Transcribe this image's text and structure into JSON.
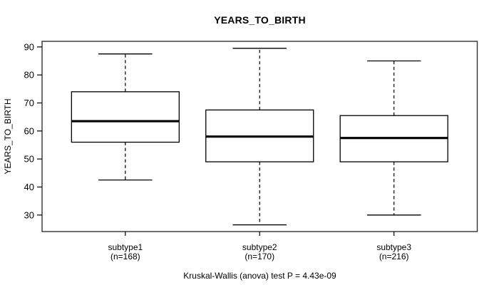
{
  "title": "YEARS_TO_BIRTH",
  "footnote": "Kruskal-Wallis (anova) test P = 4.43e-09",
  "colors": {
    "line": "#000000",
    "frame": "#333333",
    "box_fill": "#ffffff",
    "background": "#ffffff",
    "text": "#000000"
  },
  "chart_data": {
    "type": "boxplot",
    "title": "YEARS_TO_BIRTH",
    "ylabel": "YEARS_TO_BIRTH",
    "xlabel": "",
    "grid": false,
    "legend": null,
    "ylim": [
      24.1,
      92.0
    ],
    "yticks": [
      30,
      40,
      50,
      60,
      70,
      80,
      90
    ],
    "categories": [
      "subtype1",
      "subtype2",
      "subtype3"
    ],
    "category_sublabels": [
      "(n=168)",
      "(n=170)",
      "(n=216)"
    ],
    "counts": [
      168,
      170,
      216
    ],
    "series": [
      {
        "name": "subtype1",
        "n": 168,
        "whisker_low": 42.5,
        "q1": 56,
        "median": 63.5,
        "q3": 74,
        "whisker_high": 87.5,
        "outliers": []
      },
      {
        "name": "subtype2",
        "n": 170,
        "whisker_low": 26.5,
        "q1": 49,
        "median": 58,
        "q3": 67.5,
        "whisker_high": 89.5,
        "outliers": []
      },
      {
        "name": "subtype3",
        "n": 216,
        "whisker_low": 30,
        "q1": 49,
        "median": 57.5,
        "q3": 65.5,
        "whisker_high": 85,
        "outliers": []
      }
    ],
    "annotation": "Kruskal-Wallis (anova) test P = 4.43e-09"
  }
}
